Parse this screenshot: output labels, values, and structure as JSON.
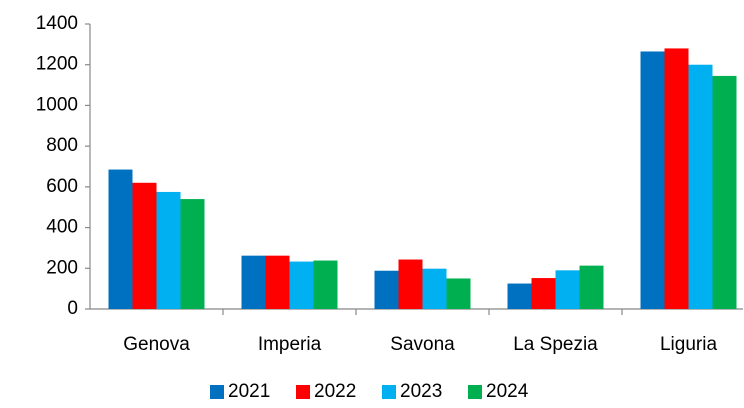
{
  "chart_data": {
    "type": "bar",
    "categories": [
      "Genova",
      "Imperia",
      "Savona",
      "La Spezia",
      "Liguria"
    ],
    "series": [
      {
        "name": "2021",
        "color": "#0070c0",
        "values": [
          685,
          262,
          188,
          125,
          1265
        ]
      },
      {
        "name": "2022",
        "color": "#ff0000",
        "values": [
          620,
          262,
          243,
          152,
          1280
        ]
      },
      {
        "name": "2023",
        "color": "#00b0f0",
        "values": [
          575,
          233,
          198,
          190,
          1200
        ]
      },
      {
        "name": "2024",
        "color": "#00b050",
        "values": [
          540,
          238,
          150,
          213,
          1145
        ]
      }
    ],
    "ylim": [
      0,
      1400
    ],
    "yticks": [
      0,
      200,
      400,
      600,
      800,
      1000,
      1200,
      1400
    ],
    "grid": false,
    "legend": "bottom"
  }
}
